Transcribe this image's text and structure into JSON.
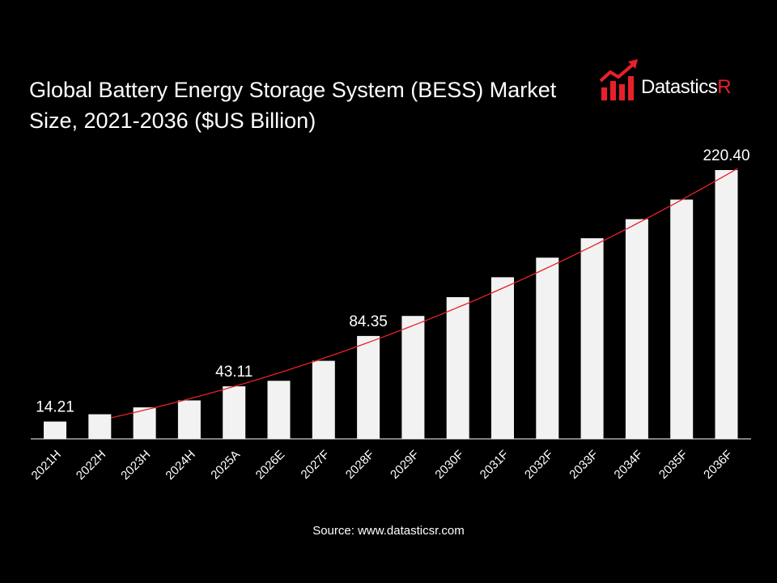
{
  "title_line1": "Global Battery Energy Storage System (BESS) Market",
  "title_line2": "Size, 2021-2036 ($US Billion)",
  "logo": {
    "text_main": "Datastics",
    "text_accent": "R",
    "icon": "bar-chart-arrow-icon"
  },
  "source": "Source: www.datasticsr.com",
  "colors": {
    "background": "#000000",
    "bar": "#f2f2f2",
    "trendline": "#e8202a",
    "text": "#ffffff"
  },
  "chart_data": {
    "type": "bar",
    "title": "Global Battery Energy Storage System (BESS) Market Size, 2021-2036 ($US Billion)",
    "categories": [
      "2021H",
      "2022H",
      "2023H",
      "2024H",
      "2025A",
      "2026E",
      "2027F",
      "2028F",
      "2029F",
      "2030F",
      "2031F",
      "2032F",
      "2033F",
      "2034F",
      "2035F",
      "2036F"
    ],
    "values": [
      14.21,
      20.2,
      25.8,
      31.5,
      43.11,
      47.6,
      64.0,
      84.35,
      100.8,
      116.2,
      132.5,
      148.6,
      164.5,
      180.1,
      196.2,
      220.4
    ],
    "data_labels": [
      {
        "index": 0,
        "text": "14.21"
      },
      {
        "index": 4,
        "text": "43.11"
      },
      {
        "index": 7,
        "text": "84.35"
      },
      {
        "index": 15,
        "text": "220.40"
      }
    ],
    "trendline": "polynomial",
    "ylim": [
      0,
      220.4
    ],
    "grid": false,
    "legend": "none",
    "xlabel": "",
    "ylabel": ""
  }
}
